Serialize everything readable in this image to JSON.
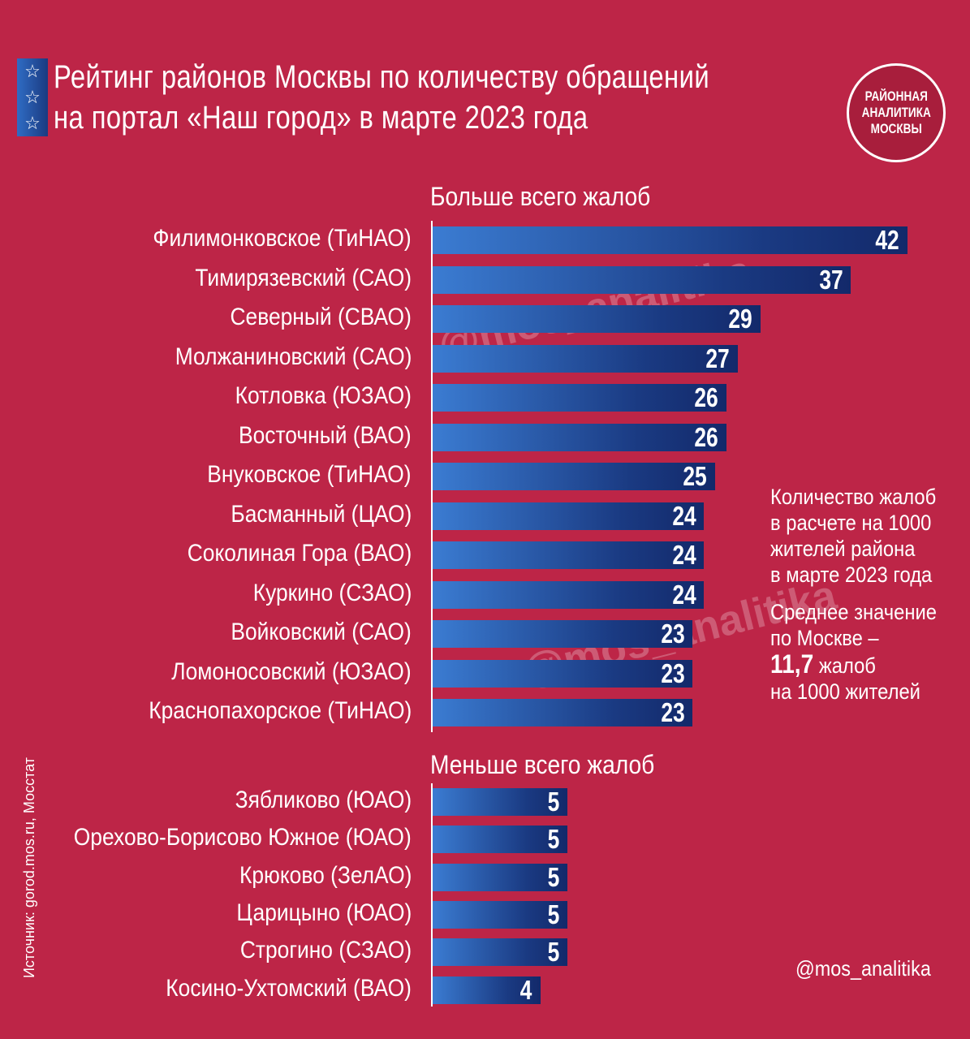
{
  "title": {
    "line1": "Рейтинг районов Москвы по количеству обращений",
    "line2": "на портал «Наш город» в марте 2023 года"
  },
  "logo": {
    "line1": "РАЙОННАЯ",
    "line2": "АНАЛИТИКА",
    "line3": "МОСКВЫ"
  },
  "stars": [
    "☆",
    "☆",
    "☆"
  ],
  "note": {
    "line1": "Количество жалоб",
    "line2": "в расчете на 1000",
    "line3": "жителей района",
    "line4": "в марте 2023 года",
    "avg1": "Среднее значение",
    "avg2": "по Москве –",
    "avg_value": "11,7",
    "avg3": " жалоб",
    "avg4": "на 1000 жителей"
  },
  "source": "Источник: gorod.mos.ru, Мосстат",
  "handle": "@mos_analitika",
  "watermark": "@mos_analitika",
  "colors": {
    "background": "#bd2547",
    "bar_start": "#3b7cd2",
    "bar_end": "#13296a"
  },
  "chart_data": [
    {
      "type": "bar",
      "orientation": "horizontal",
      "title": "Больше всего жалоб",
      "categories": [
        "Филимонковское (ТиНАО)",
        "Тимирязевский (САО)",
        "Северный (СВАО)",
        "Молжаниновский (САО)",
        "Котловка (ЮЗАО)",
        "Восточный (ВАО)",
        "Внуковское (ТиНАО)",
        "Басманный (ЦАО)",
        "Соколиная Гора (ВАО)",
        "Куркино (СЗАО)",
        "Войковский (САО)",
        "Ломоносовский (ЮЗАО)",
        "Краснопахорское (ТиНАО)"
      ],
      "values": [
        42,
        37,
        29,
        27,
        26,
        26,
        25,
        24,
        24,
        24,
        23,
        23,
        23
      ],
      "xlim": [
        0,
        42
      ]
    },
    {
      "type": "bar",
      "orientation": "horizontal",
      "title": "Меньше всего жалоб",
      "categories": [
        "Зябликово (ЮАО)",
        "Орехово-Борисово Южное (ЮАО)",
        "Крюково (ЗелАО)",
        "Царицыно (ЮАО)",
        "Строгино (СЗАО)",
        "Косино-Ухтомский (ВАО)"
      ],
      "values": [
        5,
        5,
        5,
        5,
        5,
        4
      ],
      "xlim": [
        0,
        5
      ]
    }
  ]
}
